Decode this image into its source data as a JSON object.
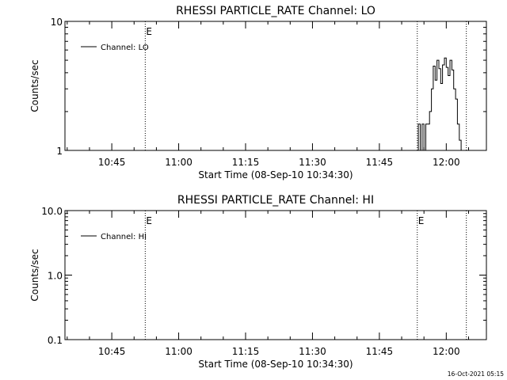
{
  "timestamp": "16-Oct-2021 05:15",
  "x_tick_labels": [
    "10:45",
    "11:00",
    "11:15",
    "11:30",
    "11:45",
    "12:00"
  ],
  "x_axis_label": "Start Time (08-Sep-10 10:34:30)",
  "chart_data": [
    {
      "type": "line",
      "title": "RHESSI PARTICLE_RATE Channel: LO",
      "xlabel": "Start Time (08-Sep-10 10:34:30)",
      "ylabel": "Counts/sec",
      "xlim": [
        "10:34:30",
        "12:09:00"
      ],
      "ylim": [
        1,
        10
      ],
      "yscale": "log",
      "y_tick_labels": [
        "1",
        "10"
      ],
      "grid": false,
      "legend": "top-left",
      "markers": [
        {
          "x": "10:52:30",
          "label": "E"
        },
        {
          "x": "11:53:30",
          "label": ""
        },
        {
          "x": "12:04:30",
          "label": ""
        }
      ],
      "series": [
        {
          "name": "Channel: LO",
          "x": [
            "11:53:20",
            "11:53:45",
            "11:54:10",
            "11:54:35",
            "11:55:00",
            "11:55:25",
            "11:55:50",
            "11:56:15",
            "11:56:40",
            "11:57:05",
            "11:57:30",
            "11:57:55",
            "11:58:20",
            "11:58:45",
            "11:59:10",
            "11:59:35",
            "12:00:00",
            "12:00:25",
            "12:00:50",
            "12:01:15",
            "12:01:40",
            "12:02:05",
            "12:02:30",
            "12:02:55",
            "12:03:20"
          ],
          "y": [
            1,
            1.6,
            1,
            1.6,
            1,
            1.6,
            1.6,
            2,
            3,
            4.5,
            3.5,
            5,
            4.3,
            3.3,
            4.6,
            5.2,
            4.4,
            3.8,
            5,
            4.2,
            3,
            2.5,
            1.6,
            1.2,
            1
          ]
        }
      ]
    },
    {
      "type": "line",
      "title": "RHESSI PARTICLE_RATE Channel: HI",
      "xlabel": "Start Time (08-Sep-10 10:34:30)",
      "ylabel": "Counts/sec",
      "xlim": [
        "10:34:30",
        "12:09:00"
      ],
      "ylim": [
        0.1,
        10
      ],
      "yscale": "log",
      "y_tick_labels": [
        "0.1",
        "1.0",
        "10.0"
      ],
      "grid": false,
      "legend": "top-left",
      "markers": [
        {
          "x": "10:52:30",
          "label": "E"
        },
        {
          "x": "11:53:30",
          "label": "E"
        },
        {
          "x": "12:04:30",
          "label": ""
        }
      ],
      "series": [
        {
          "name": "Channel: HI",
          "x": [],
          "y": []
        }
      ]
    }
  ]
}
